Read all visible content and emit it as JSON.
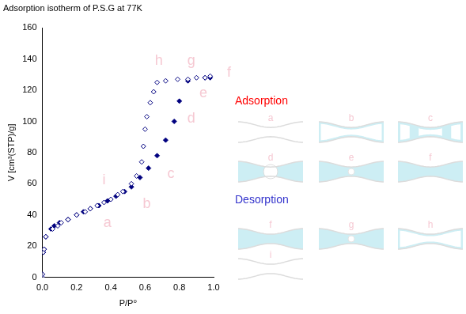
{
  "chart_data": {
    "type": "scatter",
    "title": "Adsorption isotherm of P.S.G at 77K",
    "x_label": "P/P⁰",
    "y_label": "V [cm³(STP)/g]",
    "xlim": [
      0,
      1
    ],
    "xticks": [
      {
        "value": 0,
        "label": "0.0"
      },
      {
        "value": 0.2,
        "label": "0.2"
      },
      {
        "value": 0.4,
        "label": "0.4"
      },
      {
        "value": 0.6,
        "label": "0.6"
      },
      {
        "value": 0.8,
        "label": "0.8"
      },
      {
        "value": 1,
        "label": "1.0"
      }
    ],
    "ylim": [
      0,
      160
    ],
    "yticks": [
      0,
      20,
      40,
      60,
      80,
      100,
      120,
      140,
      160
    ],
    "grid": false,
    "series": [
      {
        "name": "Adsorption",
        "color": "#00007f",
        "marker": "diamond_open",
        "x": [
          0,
          0,
          0.005,
          0.01,
          0.02,
          0.06,
          0.09,
          0.11,
          0.15,
          0.2,
          0.25,
          0.28,
          0.32,
          0.36,
          0.4,
          0.44,
          0.47,
          0.52,
          0.55,
          0.58,
          0.59,
          0.6,
          0.61,
          0.63,
          0.65,
          0.67,
          0.72,
          0.79,
          0.85,
          0.9,
          0.95,
          0.98
        ],
        "values": [
          0,
          2,
          16,
          18,
          26,
          31,
          33,
          35,
          37,
          40,
          42,
          44,
          46,
          48,
          50,
          53,
          55,
          60,
          65,
          74,
          84,
          95,
          103,
          112,
          119,
          125,
          126,
          127,
          127,
          128,
          128,
          129
        ]
      },
      {
        "name": "Desorption",
        "color": "#00007f",
        "marker": "diamond",
        "x": [
          0.98,
          0.95,
          0.85,
          0.8,
          0.77,
          0.72,
          0.67,
          0.62,
          0.57,
          0.52,
          0.48,
          0.43,
          0.38,
          0.33,
          0.28,
          0.24,
          0.2,
          0.15,
          0.1,
          0.07,
          0.05,
          0.02,
          0.01,
          0.005,
          0,
          0
        ],
        "values": [
          128,
          128,
          126,
          113,
          100,
          88,
          78,
          70,
          64,
          58,
          55,
          52,
          49,
          46,
          44,
          42,
          40,
          37,
          35,
          33,
          31,
          26,
          18,
          16,
          2,
          0
        ]
      }
    ],
    "legend": false,
    "annotations": [
      {
        "text": "a",
        "x": 0.38,
        "y": 35
      },
      {
        "text": "b",
        "x": 0.61,
        "y": 47
      },
      {
        "text": "c",
        "x": 0.75,
        "y": 66
      },
      {
        "text": "d",
        "x": 0.87,
        "y": 102
      },
      {
        "text": "e",
        "x": 0.94,
        "y": 118
      },
      {
        "text": "f",
        "x": 1.09,
        "y": 131
      },
      {
        "text": "g",
        "x": 0.87,
        "y": 139
      },
      {
        "text": "h",
        "x": 0.68,
        "y": 139
      },
      {
        "text": "i",
        "x": 0.36,
        "y": 62
      }
    ],
    "schematic": [
      {
        "title": "Adsorption",
        "color": "#ff0000",
        "panels": [
          "a",
          "b",
          "c",
          "d",
          "e",
          "f"
        ]
      },
      {
        "title": "Desorption",
        "color": "#3333cc",
        "panels": [
          "f",
          "g",
          "h",
          "i"
        ]
      }
    ]
  }
}
